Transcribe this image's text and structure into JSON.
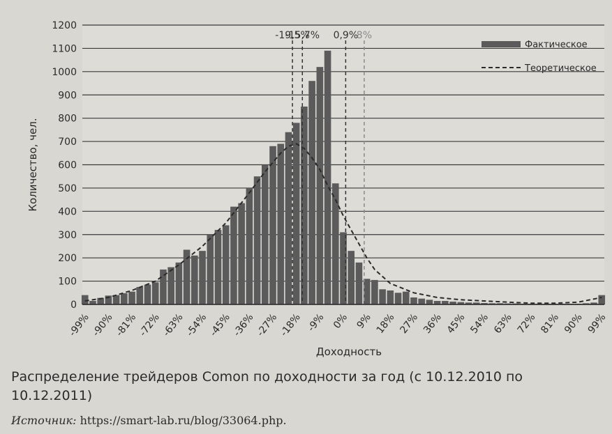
{
  "chart_data": {
    "type": "bar",
    "ylabel": "Количество, чел.",
    "xlabel": "Доходность",
    "ylim": [
      0,
      1200
    ],
    "yticks": [
      0,
      100,
      200,
      300,
      400,
      500,
      600,
      700,
      800,
      900,
      1000,
      1100,
      1200
    ],
    "xlim": [
      -100,
      100
    ],
    "bin_width": 3,
    "xtick_labels": [
      {
        "x": -99,
        "label": "-99%"
      },
      {
        "x": -90,
        "label": "-90%"
      },
      {
        "x": -81,
        "label": "-81%"
      },
      {
        "x": -72,
        "label": "-72%"
      },
      {
        "x": -63,
        "label": "-63%"
      },
      {
        "x": -54,
        "label": "-54%"
      },
      {
        "x": -45,
        "label": "-45%"
      },
      {
        "x": -36,
        "label": "-36%"
      },
      {
        "x": -27,
        "label": "-27%"
      },
      {
        "x": -18,
        "label": "-18%"
      },
      {
        "x": -9,
        "label": "-9%"
      },
      {
        "x": 0,
        "label": "0%"
      },
      {
        "x": 9,
        "label": "9%"
      },
      {
        "x": 18,
        "label": "18%"
      },
      {
        "x": 27,
        "label": "27%"
      },
      {
        "x": 36,
        "label": "36%"
      },
      {
        "x": 45,
        "label": "45%"
      },
      {
        "x": 54,
        "label": "54%"
      },
      {
        "x": 63,
        "label": "63%"
      },
      {
        "x": 72,
        "label": "72%"
      },
      {
        "x": 81,
        "label": "81%"
      },
      {
        "x": 90,
        "label": "90%"
      },
      {
        "x": 99,
        "label": "99%"
      }
    ],
    "series": [
      {
        "name": "Фактическое",
        "kind": "bar",
        "color": "#5b5b5b",
        "x": [
          -99,
          -96,
          -93,
          -90,
          -87,
          -84,
          -81,
          -78,
          -75,
          -72,
          -69,
          -66,
          -63,
          -60,
          -57,
          -54,
          -51,
          -48,
          -45,
          -42,
          -39,
          -36,
          -33,
          -30,
          -27,
          -24,
          -21,
          -18,
          -15,
          -12,
          -9,
          -6,
          -3,
          0,
          3,
          6,
          9,
          12,
          15,
          18,
          21,
          24,
          27,
          30,
          33,
          36,
          39,
          42,
          45,
          48,
          51,
          54,
          57,
          60,
          63,
          66,
          69,
          72,
          75,
          78,
          81,
          84,
          87,
          90,
          93,
          96,
          99
        ],
        "values": [
          40,
          15,
          28,
          38,
          40,
          48,
          55,
          75,
          85,
          95,
          150,
          160,
          180,
          235,
          210,
          230,
          300,
          320,
          340,
          420,
          435,
          500,
          550,
          600,
          680,
          690,
          740,
          780,
          850,
          960,
          1020,
          1090,
          520,
          310,
          230,
          180,
          110,
          105,
          65,
          60,
          50,
          55,
          30,
          25,
          20,
          15,
          15,
          12,
          10,
          8,
          8,
          6,
          5,
          5,
          4,
          4,
          3,
          3,
          3,
          3,
          3,
          3,
          3,
          3,
          5,
          8,
          40
        ]
      },
      {
        "name": "Теоретическое",
        "kind": "line",
        "style": "dashed",
        "color": "#2a2a2a",
        "x": [
          -99,
          -90,
          -81,
          -72,
          -63,
          -54,
          -45,
          -36,
          -30,
          -27,
          -24,
          -21,
          -18,
          -15,
          -12,
          -9,
          -6,
          -3,
          0,
          3,
          6,
          9,
          12,
          18,
          27,
          36,
          45,
          54,
          63,
          72,
          81,
          90,
          99
        ],
        "values": [
          15,
          30,
          60,
          100,
          170,
          250,
          350,
          480,
          570,
          610,
          650,
          680,
          690,
          670,
          630,
          580,
          510,
          450,
          380,
          320,
          260,
          200,
          150,
          90,
          50,
          30,
          20,
          15,
          10,
          5,
          5,
          10,
          30
        ]
      }
    ],
    "reference_lines": [
      {
        "x": -19.5,
        "label": "-19,5%",
        "color": "#333333"
      },
      {
        "x": -15.7,
        "label": "-15,7%",
        "color": "#333333"
      },
      {
        "x": 0.9,
        "label": "0,9%",
        "color": "#333333"
      },
      {
        "x": 8,
        "label": "8%",
        "color": "#8a8a8a"
      }
    ],
    "grid": true,
    "legend_position": "top-right"
  },
  "caption": "Распределение трейдеров Comon по доходности за год (с 10.12.2010 по 10.12.2011)",
  "source_label": "Источник:",
  "source_url": "https://smart-lab.ru/blog/33064.php."
}
